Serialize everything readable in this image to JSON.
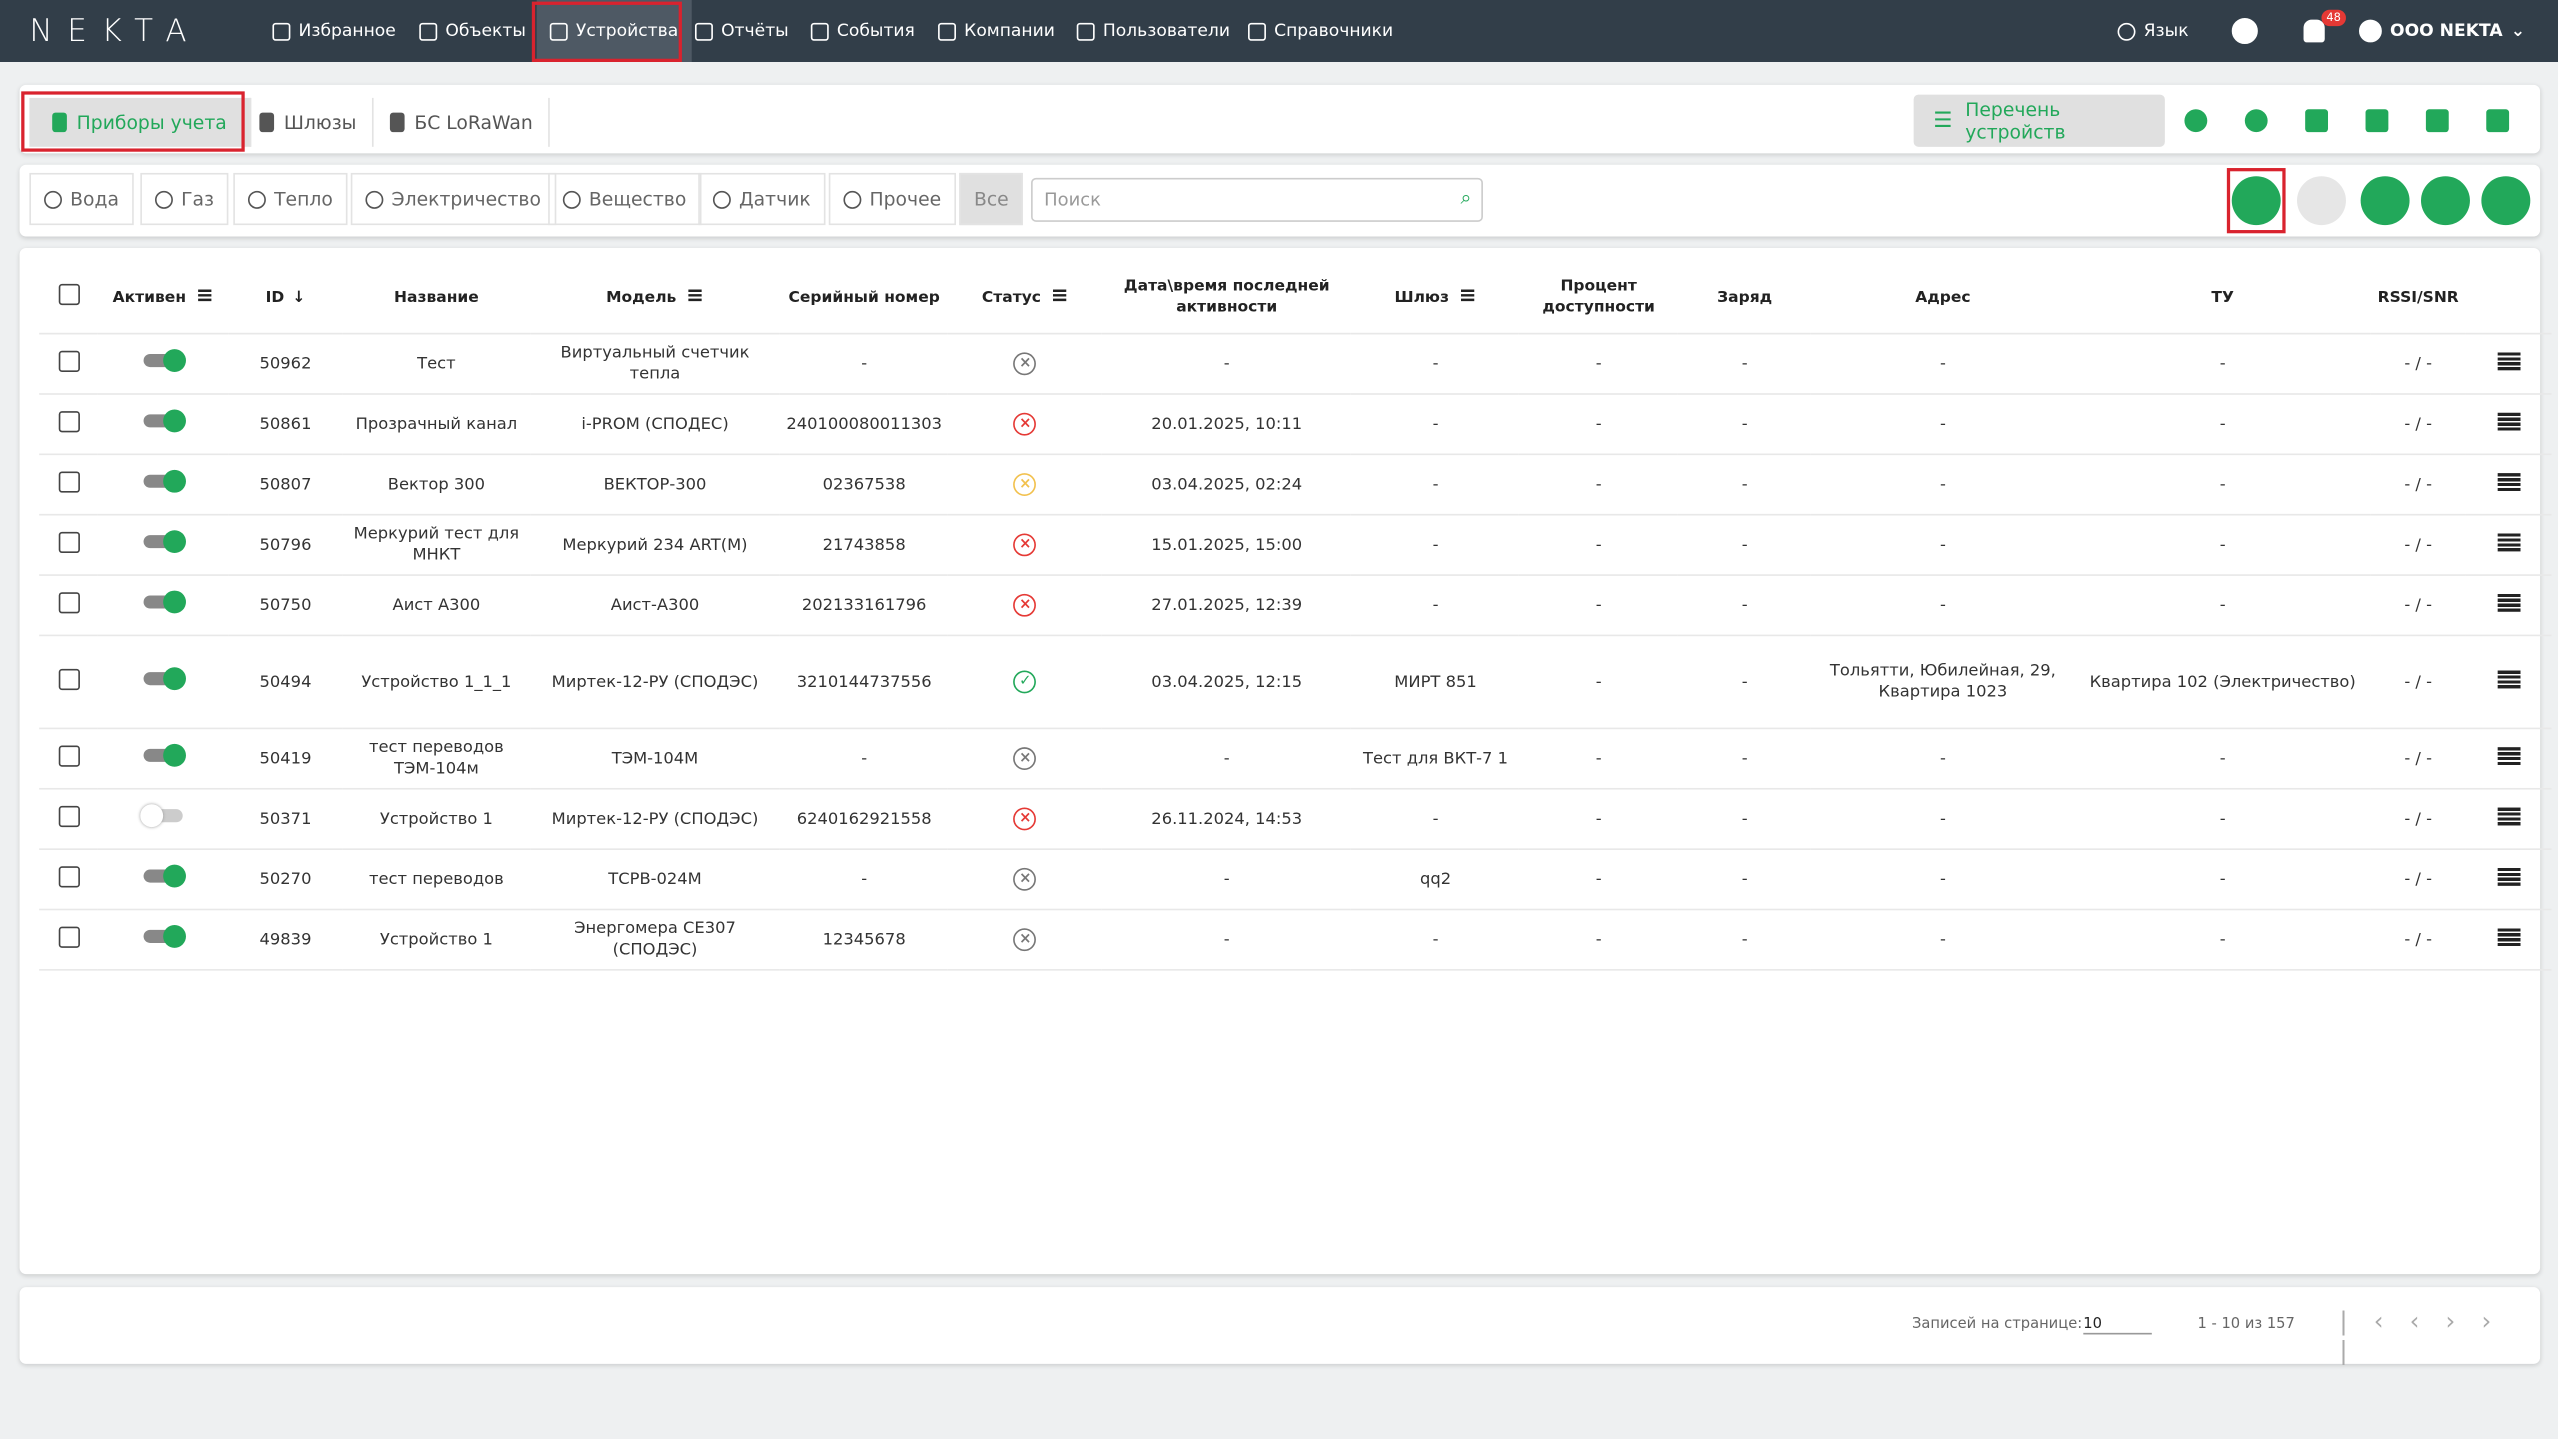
{
  "header": {
    "logo": "NEKTA",
    "nav": [
      "Избранное",
      "Объекты",
      "Устройства",
      "Отчёты",
      "События",
      "Компании",
      "Пользователи",
      "Справочники"
    ],
    "language": "Язык",
    "notifications": "48",
    "company": "ООО NEKTA"
  },
  "tabs": [
    "Приборы учета",
    "Шлюзы",
    "БС LoRaWan"
  ],
  "view_button": "Перечень устройств",
  "filters": [
    "Вода",
    "Газ",
    "Тепло",
    "Электричество",
    "Вещество",
    "Датчик",
    "Прочее",
    "Все"
  ],
  "search_placeholder": "Поиск",
  "table": {
    "columns": [
      "Активен",
      "ID",
      "Название",
      "Модель",
      "Серийный номер",
      "Статус",
      "Дата\\время последней активности",
      "Шлюз",
      "Процент доступности",
      "Заряд",
      "Адрес",
      "ТУ",
      "RSSI/SNR"
    ],
    "rows": [
      {
        "active": true,
        "status": "inactive",
        "cells": [
          "50962",
          "Тест",
          "Виртуальный счетчик тепла",
          "-",
          "-",
          "-",
          "-",
          "-",
          "-",
          "-",
          "- / -"
        ]
      },
      {
        "active": true,
        "status": "error",
        "cells": [
          "50861",
          "Прозрачный канал",
          "i-PROM (СПОДЕС)",
          "240100080011303",
          "20.01.2025, 10:11",
          "-",
          "-",
          "-",
          "-",
          "-",
          "- / -"
        ]
      },
      {
        "active": true,
        "status": "warning",
        "cells": [
          "50807",
          "Вектор 300",
          "ВЕКТОР-300",
          "02367538",
          "03.04.2025, 02:24",
          "-",
          "-",
          "-",
          "-",
          "-",
          "- / -"
        ]
      },
      {
        "active": true,
        "status": "error",
        "cells": [
          "50796",
          "Меркурий тест для МНКТ",
          "Меркурий 234 ART(M)",
          "21743858",
          "15.01.2025, 15:00",
          "-",
          "-",
          "-",
          "-",
          "-",
          "- / -"
        ]
      },
      {
        "active": true,
        "status": "error",
        "cells": [
          "50750",
          "Аист А300",
          "Аист-А300",
          "202133161796",
          "27.01.2025, 12:39",
          "-",
          "-",
          "-",
          "-",
          "-",
          "- / -"
        ]
      },
      {
        "active": true,
        "status": "ok",
        "cells": [
          "50494",
          "Устройство 1_1_1",
          "Миртек-12-РУ (СПОДЭС)",
          "3210144737556",
          "03.04.2025, 12:15",
          "МИРТ 851",
          "-",
          "-",
          "Тольятти, Юбилейная, 29, Квартира 1023",
          "Квартира 102 (Электричество)",
          "- / -"
        ]
      },
      {
        "active": true,
        "status": "inactive",
        "cells": [
          "50419",
          "тест переводов ТЭМ-104м",
          "ТЭМ-104М",
          "-",
          "-",
          "Тест для ВКТ-7 1",
          "-",
          "-",
          "-",
          "-",
          "- / -"
        ]
      },
      {
        "active": false,
        "status": "error",
        "cells": [
          "50371",
          "Устройство 1",
          "Миртек-12-РУ (СПОДЭС)",
          "6240162921558",
          "26.11.2024, 14:53",
          "-",
          "-",
          "-",
          "-",
          "-",
          "- / -"
        ]
      },
      {
        "active": true,
        "status": "inactive",
        "cells": [
          "50270",
          "тест переводов",
          "ТСРВ-024М",
          "-",
          "-",
          "qq2",
          "-",
          "-",
          "-",
          "-",
          "- / -"
        ]
      },
      {
        "active": true,
        "status": "inactive",
        "cells": [
          "49839",
          "Устройство 1",
          "Энергомера СЕ307 (СПОДЭС)",
          "12345678",
          "-",
          "-",
          "-",
          "-",
          "-",
          "-",
          "- / -"
        ]
      }
    ]
  },
  "pagination": {
    "label": "Записей на странице:",
    "per_page": "10",
    "range": "1 - 10 из 157"
  }
}
